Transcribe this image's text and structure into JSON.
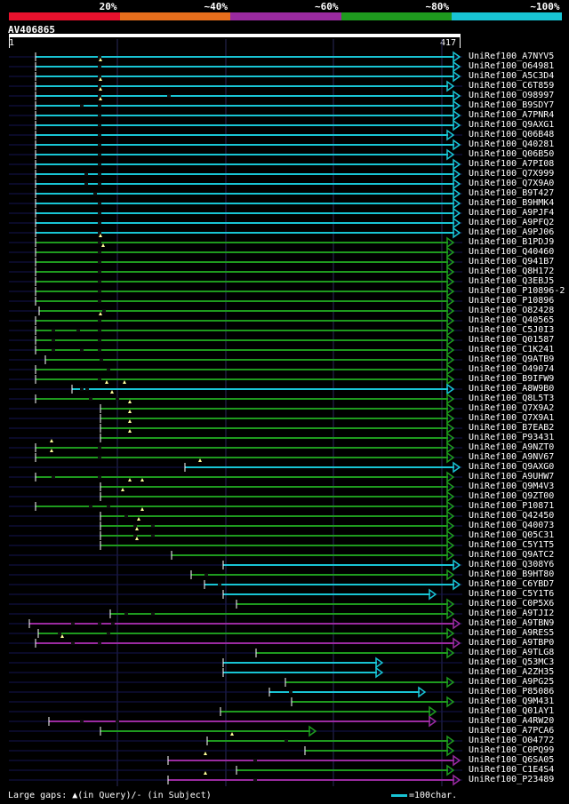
{
  "legend": [
    {
      "label": "20%",
      "color": "#e8112d"
    },
    {
      "label": "~40%",
      "color": "#e66e1c"
    },
    {
      "label": "~60%",
      "color": "#9a2aa0"
    },
    {
      "label": "~80%",
      "color": "#1e9a1e"
    },
    {
      "label": "~100%",
      "color": "#18c4d4"
    }
  ],
  "query": {
    "id": "AV406865",
    "start": "1",
    "end": "417"
  },
  "hits": [
    {
      "name": "UniRef100_A7NYV5",
      "x1": 40,
      "x2": 517,
      "c": "c",
      "gaps": [
        110
      ]
    },
    {
      "name": "UniRef100_O64981",
      "x1": 40,
      "x2": 517,
      "c": "c",
      "gaps": [
        110
      ],
      "tri": [
        113
      ]
    },
    {
      "name": "UniRef100_A5C3D4",
      "x1": 40,
      "x2": 517,
      "c": "c",
      "gaps": [
        110
      ]
    },
    {
      "name": "UniRef100_C6T859",
      "x1": 40,
      "x2": 510,
      "c": "c",
      "gaps": [
        110
      ],
      "tri": [
        113
      ]
    },
    {
      "name": "UniRef100_O98997",
      "x1": 40,
      "x2": 517,
      "c": "c",
      "gaps": [
        110,
        188
      ],
      "tri": [
        113
      ]
    },
    {
      "name": "UniRef100_B9SDY7",
      "x1": 40,
      "x2": 517,
      "c": "c",
      "gaps": [
        90,
        110
      ],
      "tri": [
        113
      ]
    },
    {
      "name": "UniRef100_A7PNR4",
      "x1": 40,
      "x2": 517,
      "c": "c",
      "gaps": [
        110
      ]
    },
    {
      "name": "UniRef100_Q9AXG1",
      "x1": 40,
      "x2": 517,
      "c": "c",
      "gaps": [
        110
      ]
    },
    {
      "name": "UniRef100_Q06B48",
      "x1": 40,
      "x2": 510,
      "c": "c",
      "gaps": [
        110
      ]
    },
    {
      "name": "UniRef100_Q40281",
      "x1": 40,
      "x2": 517,
      "c": "c",
      "gaps": [
        110
      ]
    },
    {
      "name": "UniRef100_Q06B50",
      "x1": 40,
      "x2": 510,
      "c": "c",
      "gaps": [
        110
      ]
    },
    {
      "name": "UniRef100_A7PI08",
      "x1": 40,
      "x2": 517,
      "c": "c",
      "gaps": [
        110
      ]
    },
    {
      "name": "UniRef100_Q7X999",
      "x1": 40,
      "x2": 517,
      "c": "c",
      "gaps": [
        95,
        110
      ]
    },
    {
      "name": "UniRef100_Q7X9A0",
      "x1": 40,
      "x2": 517,
      "c": "c",
      "gaps": [
        95,
        110
      ]
    },
    {
      "name": "UniRef100_B9T427",
      "x1": 40,
      "x2": 517,
      "c": "c",
      "gaps": [
        105
      ]
    },
    {
      "name": "UniRef100_B9HMK4",
      "x1": 40,
      "x2": 517,
      "c": "c",
      "gaps": [
        110
      ]
    },
    {
      "name": "UniRef100_A9PJF4",
      "x1": 40,
      "x2": 517,
      "c": "c",
      "gaps": [
        110
      ]
    },
    {
      "name": "UniRef100_A9PFQ2",
      "x1": 40,
      "x2": 517,
      "c": "c",
      "gaps": [
        110
      ]
    },
    {
      "name": "UniRef100_A9PJ06",
      "x1": 40,
      "x2": 517,
      "c": "c",
      "gaps": [
        110
      ]
    },
    {
      "name": "UniRef100_B1PDJ9",
      "x1": 40,
      "x2": 510,
      "c": "g",
      "gaps": [
        110
      ],
      "tri": [
        113
      ]
    },
    {
      "name": "UniRef100_Q40460",
      "x1": 40,
      "x2": 510,
      "c": "g",
      "gaps": [
        110
      ],
      "tri": [
        116
      ]
    },
    {
      "name": "UniRef100_Q941B7",
      "x1": 40,
      "x2": 510,
      "c": "g",
      "gaps": [
        110
      ]
    },
    {
      "name": "UniRef100_Q8H172",
      "x1": 40,
      "x2": 510,
      "c": "g",
      "gaps": [
        110
      ]
    },
    {
      "name": "UniRef100_Q3EBJ5",
      "x1": 40,
      "x2": 510,
      "c": "g",
      "gaps": [
        110
      ]
    },
    {
      "name": "UniRef100_P10896-2",
      "x1": 40,
      "x2": 510,
      "c": "g",
      "gaps": [
        110
      ]
    },
    {
      "name": "UniRef100_P10896",
      "x1": 40,
      "x2": 510,
      "c": "g",
      "gaps": [
        110
      ]
    },
    {
      "name": "UniRef100_O82428",
      "x1": 44,
      "x2": 510,
      "c": "g",
      "gaps": [
        115
      ]
    },
    {
      "name": "UniRef100_Q40565",
      "x1": 40,
      "x2": 510,
      "c": "g",
      "gaps": [
        110
      ],
      "tri": [
        113
      ]
    },
    {
      "name": "UniRef100_C5J0I3",
      "x1": 40,
      "x2": 510,
      "c": "g",
      "gaps": [
        58,
        86,
        110
      ]
    },
    {
      "name": "UniRef100_Q01587",
      "x1": 40,
      "x2": 510,
      "c": "g",
      "gaps": [
        58,
        110
      ]
    },
    {
      "name": "UniRef100_C1K241",
      "x1": 40,
      "x2": 510,
      "c": "g",
      "gaps": [
        58,
        90,
        110
      ]
    },
    {
      "name": "UniRef100_Q9ATB9",
      "x1": 51,
      "x2": 510,
      "c": "g",
      "gaps": [
        112
      ]
    },
    {
      "name": "UniRef100_O49074",
      "x1": 40,
      "x2": 510,
      "c": "g",
      "gaps": [
        120
      ]
    },
    {
      "name": "UniRef100_B9IFW9",
      "x1": 40,
      "x2": 510,
      "c": "g",
      "gaps": [
        110
      ]
    },
    {
      "name": "UniRef100_A8W9B0",
      "x1": 81,
      "x2": 510,
      "c": "c",
      "gaps": [
        90,
        96
      ],
      "tri": [
        120,
        140
      ]
    },
    {
      "name": "UniRef100_Q8L5T3",
      "x1": 40,
      "x2": 510,
      "c": "g",
      "gaps": [
        100,
        130
      ],
      "tri": [
        126
      ]
    },
    {
      "name": "UniRef100_Q7X9A2",
      "x1": 113,
      "x2": 510,
      "c": "g",
      "gaps": [],
      "tri": [
        146
      ]
    },
    {
      "name": "UniRef100_Q7X9A1",
      "x1": 113,
      "x2": 510,
      "c": "g",
      "gaps": [],
      "tri": [
        146
      ]
    },
    {
      "name": "UniRef100_B7EAB2",
      "x1": 113,
      "x2": 510,
      "c": "g",
      "gaps": [],
      "tri": [
        146
      ]
    },
    {
      "name": "UniRef100_P93431",
      "x1": 113,
      "x2": 510,
      "c": "g",
      "gaps": [],
      "tri": [
        146
      ]
    },
    {
      "name": "UniRef100_A9NZT0",
      "x1": 40,
      "x2": 510,
      "c": "g",
      "gaps": [
        110
      ],
      "tri": [
        58
      ]
    },
    {
      "name": "UniRef100_A9NV67",
      "x1": 40,
      "x2": 510,
      "c": "g",
      "gaps": [
        110
      ],
      "tri": [
        58
      ]
    },
    {
      "name": "UniRef100_Q9AXG0",
      "x1": 208,
      "x2": 517,
      "c": "c",
      "gaps": [],
      "tri": [
        225
      ]
    },
    {
      "name": "UniRef100_A9UHW7",
      "x1": 40,
      "x2": 510,
      "c": "g",
      "gaps": [
        58,
        110
      ]
    },
    {
      "name": "UniRef100_Q9M4V3",
      "x1": 113,
      "x2": 510,
      "c": "g",
      "gaps": [],
      "tri": [
        146,
        160
      ]
    },
    {
      "name": "UniRef100_Q9ZT00",
      "x1": 113,
      "x2": 510,
      "c": "g",
      "gaps": [],
      "tri": [
        138
      ]
    },
    {
      "name": "UniRef100_P10871",
      "x1": 40,
      "x2": 510,
      "c": "g",
      "gaps": [
        100,
        120
      ]
    },
    {
      "name": "UniRef100_Q42450",
      "x1": 113,
      "x2": 510,
      "c": "g",
      "gaps": [
        140
      ],
      "tri": [
        160
      ]
    },
    {
      "name": "UniRef100_Q40073",
      "x1": 113,
      "x2": 510,
      "c": "g",
      "gaps": [
        150,
        170
      ],
      "tri": [
        156
      ]
    },
    {
      "name": "UniRef100_Q05C31",
      "x1": 113,
      "x2": 510,
      "c": "g",
      "gaps": [
        150,
        170
      ],
      "tri": [
        154
      ]
    },
    {
      "name": "UniRef100_C5Y1T5",
      "x1": 113,
      "x2": 510,
      "c": "g",
      "gaps": [],
      "tri": [
        154
      ]
    },
    {
      "name": "UniRef100_Q9ATC2",
      "x1": 193,
      "x2": 510,
      "c": "g",
      "gaps": []
    },
    {
      "name": "UniRef100_Q308Y6",
      "x1": 251,
      "x2": 517,
      "c": "c",
      "gaps": []
    },
    {
      "name": "UniRef100_B9HT80",
      "x1": 215,
      "x2": 510,
      "c": "g",
      "gaps": [
        230
      ]
    },
    {
      "name": "UniRef100_C6YBD7",
      "x1": 230,
      "x2": 517,
      "c": "c",
      "gaps": [
        245
      ]
    },
    {
      "name": "UniRef100_C5Y1T6",
      "x1": 251,
      "x2": 490,
      "c": "c",
      "gaps": []
    },
    {
      "name": "UniRef100_C0P5X6",
      "x1": 266,
      "x2": 510,
      "c": "g",
      "gaps": []
    },
    {
      "name": "UniRef100_A9TJI2",
      "x1": 124,
      "x2": 510,
      "c": "g",
      "gaps": [
        140,
        170
      ]
    },
    {
      "name": "UniRef100_A9TBN9",
      "x1": 33,
      "x2": 517,
      "c": "p",
      "gaps": [
        80,
        110,
        125
      ]
    },
    {
      "name": "UniRef100_A9RES5",
      "x1": 43,
      "x2": 510,
      "c": "g",
      "gaps": [
        65,
        120
      ]
    },
    {
      "name": "UniRef100_A9TBP0",
      "x1": 40,
      "x2": 517,
      "c": "p",
      "gaps": [
        80,
        110
      ],
      "tri": [
        70
      ]
    },
    {
      "name": "UniRef100_A9TLG8",
      "x1": 288,
      "x2": 510,
      "c": "g",
      "gaps": []
    },
    {
      "name": "UniRef100_Q53MC3",
      "x1": 251,
      "x2": 430,
      "c": "c",
      "gaps": []
    },
    {
      "name": "UniRef100_A2ZH35",
      "x1": 251,
      "x2": 430,
      "c": "c",
      "gaps": []
    },
    {
      "name": "UniRef100_A9PG25",
      "x1": 321,
      "x2": 510,
      "c": "g",
      "gaps": []
    },
    {
      "name": "UniRef100_P85086",
      "x1": 303,
      "x2": 478,
      "c": "c",
      "gaps": [
        325
      ]
    },
    {
      "name": "UniRef100_Q9M431",
      "x1": 328,
      "x2": 510,
      "c": "g",
      "gaps": []
    },
    {
      "name": "UniRef100_Q01AY1",
      "x1": 248,
      "x2": 490,
      "c": "g",
      "gaps": []
    },
    {
      "name": "UniRef100_A4RW20",
      "x1": 55,
      "x2": 490,
      "c": "p",
      "gaps": [
        90,
        130
      ]
    },
    {
      "name": "UniRef100_A7PCA6",
      "x1": 113,
      "x2": 355,
      "c": "g",
      "gaps": []
    },
    {
      "name": "UniRef100_O04772",
      "x1": 233,
      "x2": 510,
      "c": "g",
      "gaps": [
        320
      ],
      "tri": [
        261
      ]
    },
    {
      "name": "UniRef100_C0PQ99",
      "x1": 343,
      "x2": 510,
      "c": "g",
      "gaps": []
    },
    {
      "name": "UniRef100_Q6SA05",
      "x1": 189,
      "x2": 517,
      "c": "p",
      "gaps": [
        285
      ],
      "tri": [
        231
      ]
    },
    {
      "name": "UniRef100_C1E4S4",
      "x1": 266,
      "x2": 510,
      "c": "g",
      "gaps": []
    },
    {
      "name": "UniRef100_P23489",
      "x1": 189,
      "x2": 517,
      "c": "p",
      "gaps": [
        285
      ],
      "tri": [
        231
      ]
    }
  ],
  "footer": "Large gaps: ▲(in Query)/- (in Subject)",
  "scale_label": "=100char."
}
